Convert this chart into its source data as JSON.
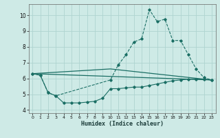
{
  "xlabel": "Humidex (Indice chaleur)",
  "bg_color": "#ceeae6",
  "grid_color": "#aed4d0",
  "line_color": "#1a6e64",
  "xlim": [
    -0.5,
    23.5
  ],
  "ylim": [
    3.8,
    10.7
  ],
  "yticks": [
    4,
    5,
    6,
    7,
    8,
    9,
    10
  ],
  "xticks": [
    0,
    1,
    2,
    3,
    4,
    5,
    6,
    7,
    8,
    9,
    10,
    11,
    12,
    13,
    14,
    15,
    16,
    17,
    18,
    19,
    20,
    21,
    22,
    23
  ],
  "series": [
    {
      "x": [
        0,
        1,
        2,
        3,
        4,
        5,
        6,
        7,
        8,
        9,
        10,
        11,
        12,
        13,
        14,
        15,
        16,
        17,
        18,
        19,
        20,
        21,
        22,
        23
      ],
      "y": [
        6.3,
        6.2,
        5.1,
        4.9,
        4.45,
        4.45,
        4.45,
        4.5,
        4.55,
        4.75,
        5.35,
        5.35,
        5.4,
        5.45,
        5.45,
        5.55,
        5.65,
        5.75,
        5.85,
        5.9,
        5.95,
        5.95,
        5.95,
        5.9
      ],
      "style": "-",
      "marker": "D",
      "markersize": 1.8,
      "linewidth": 0.8
    },
    {
      "x": [
        0,
        1,
        2,
        3,
        10,
        11,
        12,
        13,
        14,
        15,
        16,
        17,
        18,
        19,
        20,
        21,
        22,
        23
      ],
      "y": [
        6.3,
        6.2,
        5.1,
        4.9,
        5.9,
        6.85,
        7.5,
        8.3,
        8.5,
        10.35,
        9.6,
        9.75,
        8.4,
        8.4,
        7.5,
        6.6,
        6.05,
        5.9
      ],
      "style": "--",
      "marker": "D",
      "markersize": 1.8,
      "linewidth": 0.8
    },
    {
      "x": [
        0,
        23
      ],
      "y": [
        6.3,
        5.9
      ],
      "style": "-",
      "marker": null,
      "linewidth": 0.9
    },
    {
      "x": [
        0,
        10,
        23
      ],
      "y": [
        6.3,
        6.6,
        5.9
      ],
      "style": "-",
      "marker": null,
      "linewidth": 0.9
    }
  ]
}
